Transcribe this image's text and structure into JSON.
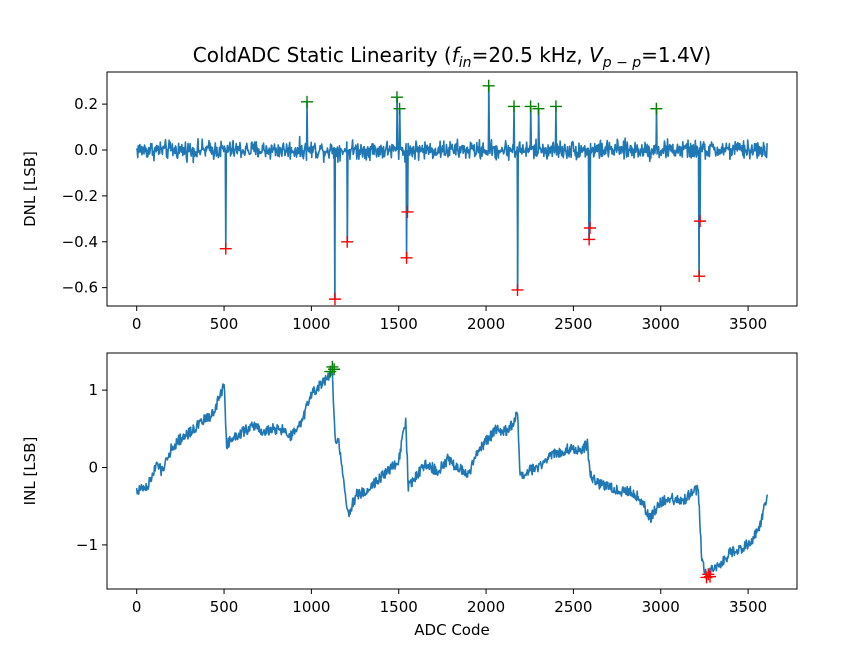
{
  "title": {
    "prefix": "ColdADC Static Linearity (",
    "f_var": "f",
    "f_sub": "in",
    "f_val": "=20.5 kHz, ",
    "v_var": "V",
    "v_sub": "p − p",
    "v_val": "=1.4V)"
  },
  "colors": {
    "line": "#1f77b4",
    "positive_marker": "#008000",
    "negative_marker": "#ff0000",
    "axis": "#000000"
  },
  "chart_data": [
    {
      "type": "line",
      "name": "dnl",
      "xlabel": "",
      "ylabel": "DNL [LSB]",
      "xlim": [
        -170,
        3780
      ],
      "ylim": [
        -0.68,
        0.34
      ],
      "xticks": [
        0,
        500,
        1000,
        1500,
        2000,
        2500,
        3000,
        3500
      ],
      "yticks": [
        -0.6,
        -0.4,
        -0.2,
        0.0,
        0.2
      ],
      "ytick_labels": [
        "−0.6",
        "−0.4",
        "−0.2",
        "0.0",
        "0.2"
      ],
      "x_range": [
        0,
        3610
      ],
      "noise_amplitude": 0.06,
      "spikes": [
        {
          "x": 510,
          "y": -0.43
        },
        {
          "x": 1135,
          "y": -0.65
        },
        {
          "x": 1205,
          "y": -0.4
        },
        {
          "x": 1545,
          "y": -0.47
        },
        {
          "x": 1550,
          "y": -0.27
        },
        {
          "x": 2180,
          "y": -0.61
        },
        {
          "x": 2590,
          "y": -0.39
        },
        {
          "x": 2595,
          "y": -0.34
        },
        {
          "x": 3220,
          "y": -0.55
        },
        {
          "x": 3225,
          "y": -0.31
        },
        {
          "x": 975,
          "y": 0.21
        },
        {
          "x": 1490,
          "y": 0.23
        },
        {
          "x": 1505,
          "y": 0.18
        },
        {
          "x": 2015,
          "y": 0.28
        },
        {
          "x": 2160,
          "y": 0.19
        },
        {
          "x": 2255,
          "y": 0.19
        },
        {
          "x": 2300,
          "y": 0.18
        },
        {
          "x": 2400,
          "y": 0.19
        },
        {
          "x": 2975,
          "y": 0.18
        }
      ],
      "positive_markers": [
        {
          "x": 975,
          "y": 0.21
        },
        {
          "x": 1490,
          "y": 0.23
        },
        {
          "x": 1505,
          "y": 0.18
        },
        {
          "x": 2015,
          "y": 0.28
        },
        {
          "x": 2160,
          "y": 0.19
        },
        {
          "x": 2255,
          "y": 0.19
        },
        {
          "x": 2300,
          "y": 0.18
        },
        {
          "x": 2400,
          "y": 0.19
        },
        {
          "x": 2975,
          "y": 0.18
        }
      ],
      "negative_markers": [
        {
          "x": 510,
          "y": -0.43
        },
        {
          "x": 1135,
          "y": -0.65
        },
        {
          "x": 1205,
          "y": -0.4
        },
        {
          "x": 1545,
          "y": -0.47
        },
        {
          "x": 1550,
          "y": -0.27
        },
        {
          "x": 2180,
          "y": -0.61
        },
        {
          "x": 2590,
          "y": -0.39
        },
        {
          "x": 2595,
          "y": -0.34
        },
        {
          "x": 3220,
          "y": -0.55
        },
        {
          "x": 3225,
          "y": -0.31
        }
      ]
    },
    {
      "type": "line",
      "name": "inl",
      "xlabel": "ADC Code",
      "ylabel": "INL [LSB]",
      "xlim": [
        -170,
        3780
      ],
      "ylim": [
        -1.57,
        1.48
      ],
      "xticks": [
        0,
        500,
        1000,
        1500,
        2000,
        2500,
        3000,
        3500
      ],
      "yticks": [
        -1,
        0,
        1
      ],
      "ytick_labels": [
        "−1",
        "0",
        "1"
      ],
      "points": [
        [
          0,
          -0.3
        ],
        [
          60,
          -0.25
        ],
        [
          120,
          0.05
        ],
        [
          140,
          -0.05
        ],
        [
          200,
          0.25
        ],
        [
          240,
          0.35
        ],
        [
          300,
          0.45
        ],
        [
          380,
          0.6
        ],
        [
          440,
          0.7
        ],
        [
          500,
          1.08
        ],
        [
          515,
          0.3
        ],
        [
          560,
          0.4
        ],
        [
          620,
          0.48
        ],
        [
          680,
          0.55
        ],
        [
          720,
          0.45
        ],
        [
          780,
          0.5
        ],
        [
          840,
          0.48
        ],
        [
          880,
          0.4
        ],
        [
          940,
          0.55
        ],
        [
          1000,
          0.95
        ],
        [
          1060,
          1.08
        ],
        [
          1120,
          1.2
        ],
        [
          1135,
          0.4
        ],
        [
          1160,
          0.3
        ],
        [
          1185,
          -0.2
        ],
        [
          1210,
          -0.6
        ],
        [
          1260,
          -0.35
        ],
        [
          1320,
          -0.3
        ],
        [
          1380,
          -0.15
        ],
        [
          1440,
          -0.05
        ],
        [
          1500,
          0.1
        ],
        [
          1540,
          0.6
        ],
        [
          1555,
          -0.25
        ],
        [
          1600,
          -0.1
        ],
        [
          1660,
          0.05
        ],
        [
          1720,
          -0.05
        ],
        [
          1780,
          0.1
        ],
        [
          1840,
          0.0
        ],
        [
          1900,
          -0.1
        ],
        [
          1960,
          0.25
        ],
        [
          2020,
          0.38
        ],
        [
          2060,
          0.5
        ],
        [
          2100,
          0.45
        ],
        [
          2150,
          0.55
        ],
        [
          2180,
          0.7
        ],
        [
          2195,
          -0.15
        ],
        [
          2240,
          -0.05
        ],
        [
          2300,
          0.0
        ],
        [
          2360,
          0.15
        ],
        [
          2420,
          0.2
        ],
        [
          2480,
          0.25
        ],
        [
          2540,
          0.22
        ],
        [
          2580,
          0.3
        ],
        [
          2595,
          -0.1
        ],
        [
          2640,
          -0.2
        ],
        [
          2700,
          -0.25
        ],
        [
          2760,
          -0.3
        ],
        [
          2820,
          -0.3
        ],
        [
          2880,
          -0.4
        ],
        [
          2940,
          -0.65
        ],
        [
          3000,
          -0.45
        ],
        [
          3060,
          -0.4
        ],
        [
          3120,
          -0.45
        ],
        [
          3180,
          -0.3
        ],
        [
          3215,
          -0.3
        ],
        [
          3235,
          -1.2
        ],
        [
          3260,
          -1.38
        ],
        [
          3300,
          -1.3
        ],
        [
          3340,
          -1.25
        ],
        [
          3400,
          -1.1
        ],
        [
          3460,
          -1.05
        ],
        [
          3520,
          -0.95
        ],
        [
          3570,
          -0.75
        ],
        [
          3610,
          -0.35
        ]
      ],
      "noise_amplitude": 0.07,
      "positive_markers": [
        {
          "x": 1108,
          "y": 1.24
        },
        {
          "x": 1120,
          "y": 1.3
        },
        {
          "x": 1130,
          "y": 1.27
        }
      ],
      "negative_markers": [
        {
          "x": 3262,
          "y": -1.42
        },
        {
          "x": 3272,
          "y": -1.38
        },
        {
          "x": 3282,
          "y": -1.41
        }
      ]
    }
  ]
}
